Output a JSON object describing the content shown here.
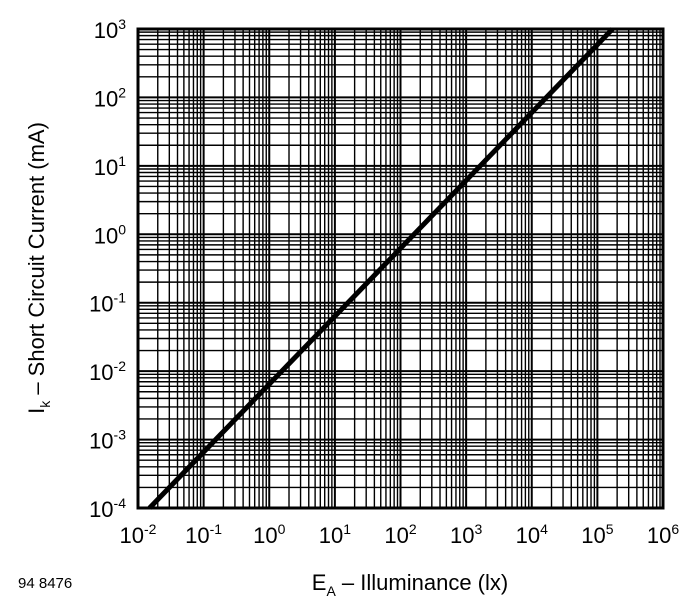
{
  "chart_data": {
    "type": "line",
    "xlabel": {
      "main": "E",
      "sub": "A",
      "rest": " – Illuminance (lx)"
    },
    "ylabel": {
      "main": "I",
      "sub": "k",
      "rest": " – Short Circuit Current (mA)"
    },
    "x_scale": "log",
    "y_scale": "log",
    "xlim": [
      0.01,
      1000000
    ],
    "ylim": [
      0.0001,
      1000
    ],
    "x_ticks": [
      {
        "base": "10",
        "exp": "-2"
      },
      {
        "base": "10",
        "exp": "-1"
      },
      {
        "base": "10",
        "exp": "0"
      },
      {
        "base": "10",
        "exp": "1"
      },
      {
        "base": "10",
        "exp": "2"
      },
      {
        "base": "10",
        "exp": "3"
      },
      {
        "base": "10",
        "exp": "4"
      },
      {
        "base": "10",
        "exp": "5"
      },
      {
        "base": "10",
        "exp": "6"
      }
    ],
    "y_ticks": [
      {
        "base": "10",
        "exp": "3"
      },
      {
        "base": "10",
        "exp": "2"
      },
      {
        "base": "10",
        "exp": "1"
      },
      {
        "base": "10",
        "exp": "0"
      },
      {
        "base": "10",
        "exp": "-1"
      },
      {
        "base": "10",
        "exp": "-2"
      },
      {
        "base": "10",
        "exp": "-3"
      },
      {
        "base": "10",
        "exp": "-4"
      }
    ],
    "grid": true,
    "series": [
      {
        "x": [
          0.015,
          170000
        ],
        "y": [
          0.0001,
          1000
        ],
        "color": "#000000"
      }
    ]
  },
  "figure_code": "94 8476"
}
